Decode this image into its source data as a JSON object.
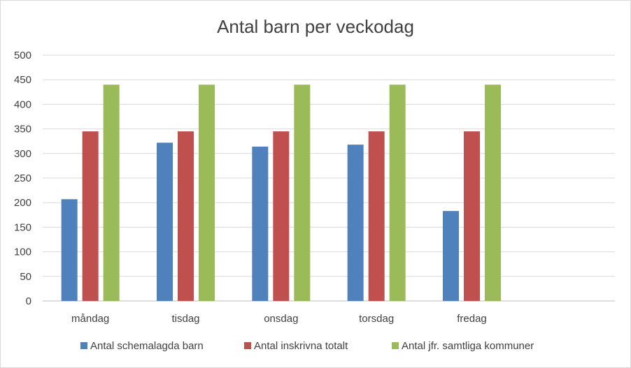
{
  "chart_data": {
    "type": "bar",
    "title": "Antal barn per veckodag",
    "xlabel": "",
    "ylabel": "",
    "categories": [
      "måndag",
      "tisdag",
      "onsdag",
      "torsdag",
      "fredag"
    ],
    "series": [
      {
        "name": "Antal schemalagda barn",
        "color": "#4f81bd",
        "values": [
          207,
          322,
          314,
          318,
          183
        ]
      },
      {
        "name": "Antal inskrivna totalt",
        "color": "#c0504d",
        "values": [
          345,
          345,
          345,
          345,
          345
        ]
      },
      {
        "name": "Antal jfr. samtliga kommuner",
        "color": "#9bbb59",
        "values": [
          440,
          440,
          440,
          440,
          440
        ]
      }
    ],
    "ylim": [
      0,
      500
    ],
    "yticks": [
      0,
      50,
      100,
      150,
      200,
      250,
      300,
      350,
      400,
      450,
      500
    ],
    "grid": true,
    "legend_position": "bottom",
    "empty_trailing_categories": 1
  }
}
